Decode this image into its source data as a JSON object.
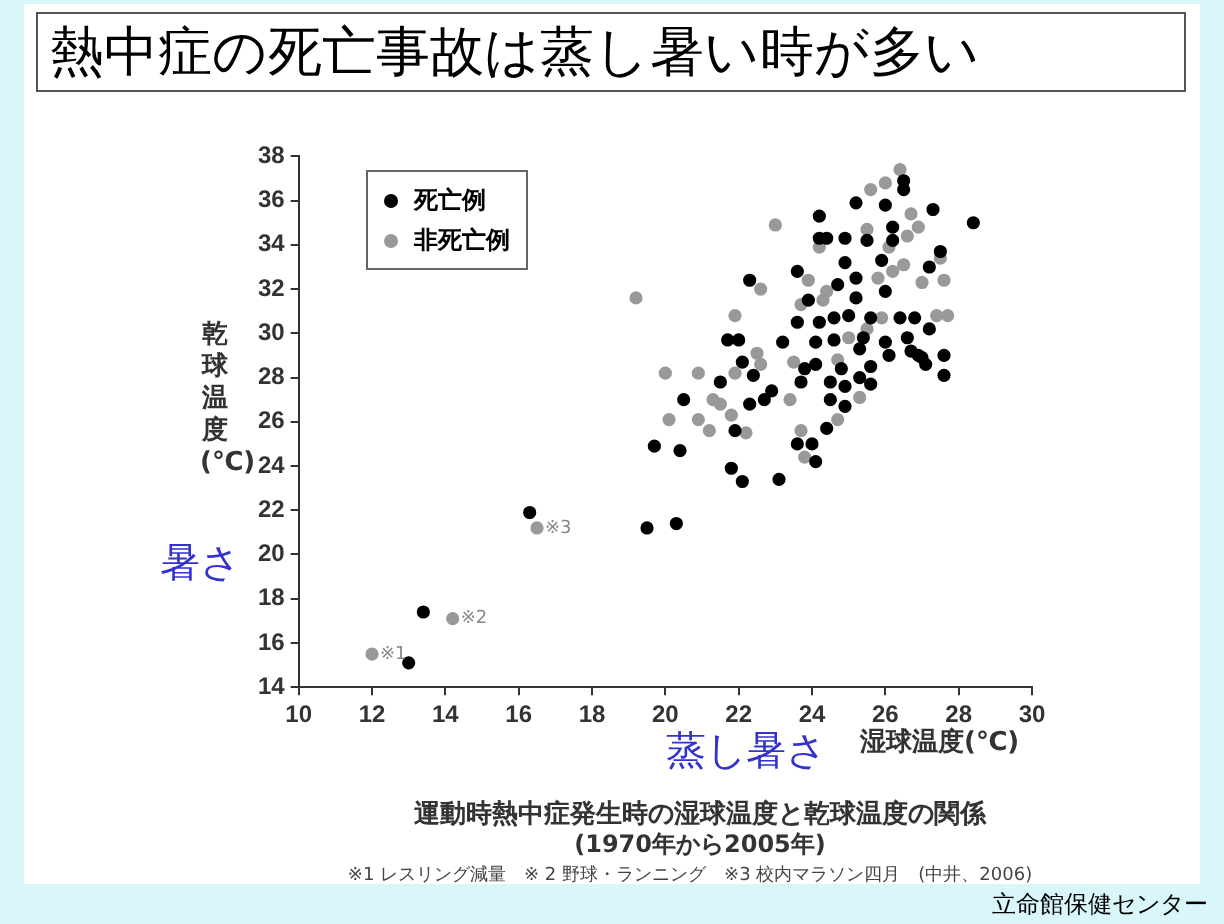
{
  "chart_data": {
    "type": "scatter",
    "title": "熱中症の死亡事故は蒸し暑い時が多い",
    "xlabel": "湿球温度(℃)",
    "ylabel": "乾球温度(℃)",
    "xlim": [
      10,
      30
    ],
    "xticks": [
      10,
      12,
      14,
      16,
      18,
      20,
      22,
      24,
      26,
      28,
      30
    ],
    "ylim": [
      14,
      38
    ],
    "yticks": [
      14,
      16,
      18,
      20,
      22,
      24,
      26,
      28,
      30,
      32,
      34,
      36,
      38
    ],
    "grid": false,
    "legend": "top left",
    "marker": "circle",
    "series": [
      {
        "name": "死亡例",
        "color": "#000000",
        "x": [
          13.0,
          13.4,
          16.3,
          19.5,
          20.3,
          19.7,
          20.4,
          20.5,
          21.8,
          22.1,
          23.1,
          21.9,
          21.5,
          21.7,
          22.0,
          22.1,
          22.4,
          22.3,
          22.3,
          22.7,
          22.9,
          23.2,
          23.6,
          23.6,
          23.7,
          23.8,
          24.0,
          24.1,
          23.6,
          23.9,
          24.1,
          24.1,
          24.2,
          24.2,
          24.4,
          24.4,
          24.5,
          24.5,
          24.6,
          24.6,
          24.8,
          24.9,
          24.9,
          24.9,
          25.2,
          25.2,
          25.2,
          25.3,
          25.4,
          25.6,
          25.6,
          25.6,
          25.5,
          26.0,
          25.9,
          26.0,
          26.0,
          26.1,
          26.2,
          26.2,
          26.4,
          26.5,
          26.5,
          26.6,
          26.7,
          26.8,
          26.9,
          27.0,
          27.1,
          27.2,
          27.2,
          27.3,
          27.5,
          27.6,
          28.4,
          24.9,
          24.7,
          24.2,
          25.0,
          25.3,
          27.6
        ],
        "values": [
          15.1,
          17.4,
          21.9,
          21.2,
          21.4,
          24.9,
          24.7,
          27.0,
          23.9,
          23.3,
          23.4,
          25.6,
          27.8,
          29.7,
          29.7,
          28.7,
          28.1,
          26.8,
          32.4,
          27.0,
          27.4,
          29.6,
          32.8,
          25.0,
          27.8,
          28.4,
          25.0,
          24.2,
          30.5,
          31.5,
          29.6,
          28.6,
          35.3,
          34.3,
          34.3,
          25.7,
          27.8,
          27.0,
          29.7,
          30.7,
          28.4,
          27.6,
          26.7,
          34.3,
          35.9,
          32.5,
          31.6,
          28.0,
          29.8,
          30.7,
          28.5,
          27.7,
          34.2,
          35.8,
          33.3,
          31.9,
          29.6,
          29.0,
          34.2,
          34.8,
          30.7,
          36.9,
          36.5,
          29.8,
          29.2,
          30.7,
          29.0,
          28.9,
          28.6,
          33.0,
          30.2,
          35.6,
          33.7,
          29.0,
          35.0,
          33.2,
          32.2,
          30.5,
          30.8,
          29.3,
          28.1
        ]
      },
      {
        "name": "非死亡例",
        "color": "#999999",
        "x": [
          12.0,
          14.2,
          16.5,
          19.2,
          20.0,
          20.1,
          20.9,
          20.9,
          21.2,
          21.3,
          21.5,
          21.8,
          21.9,
          21.9,
          22.2,
          22.5,
          22.6,
          22.6,
          23.0,
          23.4,
          23.7,
          23.8,
          23.9,
          23.7,
          23.5,
          24.2,
          24.3,
          24.4,
          24.7,
          24.7,
          25.0,
          25.3,
          25.5,
          25.5,
          25.6,
          25.8,
          26.0,
          26.1,
          26.2,
          26.4,
          26.5,
          26.6,
          26.7,
          26.9,
          27.0,
          27.4,
          27.5,
          27.6,
          27.7,
          25.9
        ],
        "values": [
          15.5,
          17.1,
          21.2,
          31.6,
          28.2,
          26.1,
          26.1,
          28.2,
          25.6,
          27.0,
          26.8,
          26.3,
          30.8,
          28.2,
          25.5,
          29.1,
          32.0,
          28.6,
          34.9,
          27.0,
          25.6,
          24.4,
          32.4,
          31.3,
          28.7,
          33.9,
          31.5,
          31.9,
          28.8,
          26.1,
          29.8,
          27.1,
          30.2,
          34.7,
          36.5,
          32.5,
          36.8,
          33.9,
          32.8,
          37.4,
          33.1,
          34.4,
          35.4,
          34.8,
          32.3,
          30.8,
          33.4,
          32.4,
          30.8,
          30.7
        ]
      }
    ],
    "annotations": [
      {
        "text": "※1",
        "x": 12.0,
        "y": 15.5
      },
      {
        "text": "※2",
        "x": 14.2,
        "y": 17.1
      },
      {
        "text": "※3",
        "x": 16.5,
        "y": 21.2
      },
      "暑さ",
      "蒸し暑さ",
      "運動時熱中症発生時の湿球温度と乾球温度の関係",
      "(1970年から2005年)",
      "※1 レスリング減量　※ 2 野球・ランニング　※3 校内マラソン四月　(中井、2006)",
      "立命館保健センター"
    ]
  }
}
